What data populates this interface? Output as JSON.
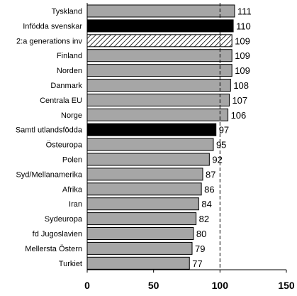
{
  "chart_data": {
    "type": "bar",
    "orientation": "horizontal",
    "categories": [
      "Tyskland",
      "Infödda svenskar",
      "2:a generations inv",
      "Finland",
      "Norden",
      "Danmark",
      "Centrala EU",
      "Norge",
      "Samtl utlandsfödda",
      "Östeuropa",
      "Polen",
      "Syd/Mellanamerika",
      "Afrika",
      "Iran",
      "Sydeuropa",
      "fd Jugoslavien",
      "Mellersta Östern",
      "Turkiet"
    ],
    "values": [
      111,
      110,
      109,
      109,
      109,
      108,
      107,
      106,
      97,
      95,
      92,
      87,
      86,
      84,
      82,
      80,
      79,
      77
    ],
    "bar_styles": [
      "gray",
      "black",
      "hatched",
      "gray",
      "gray",
      "gray",
      "gray",
      "gray",
      "black",
      "gray",
      "gray",
      "gray",
      "gray",
      "gray",
      "gray",
      "gray",
      "gray",
      "gray"
    ],
    "xlim": [
      0,
      150
    ],
    "xticks": [
      0,
      50,
      100,
      150
    ],
    "reference_line": 100,
    "grid": false,
    "title": "",
    "xlabel": "",
    "ylabel": ""
  },
  "colors": {
    "gray": "#a6a6a6",
    "black": "#000000",
    "hatched_fill": "#ffffff",
    "hatched_stroke": "#000000"
  }
}
